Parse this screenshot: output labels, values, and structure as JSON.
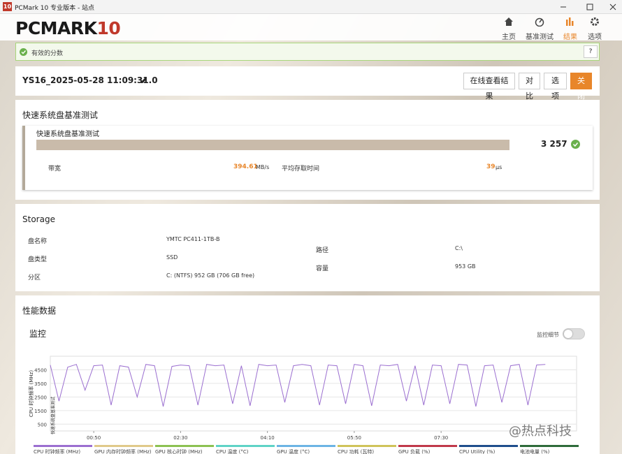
{
  "window": {
    "icon": "10",
    "title": "PCMark 10 专业版本 - 站点"
  },
  "header": {
    "logo": "PCMARK",
    "logo_num": "10",
    "nav": [
      "主页",
      "基准测试",
      "结果",
      "选项"
    ]
  },
  "notice": {
    "text": "有效的分数",
    "help": "?"
  },
  "result": {
    "name": "YS16_2025-05-28 11:09:31.0",
    "buttons": [
      "在线查看结果",
      "对比",
      "选项",
      "关闭"
    ]
  },
  "benchmark": {
    "heading": "快速系统盘基准测试",
    "card_title": "快速系统盘基准测试",
    "score": "3 257",
    "metrics": [
      {
        "label": "带宽",
        "value": "394.61",
        "unit": "MB/s"
      },
      {
        "label": "平均存取时间",
        "value": "39",
        "unit": "μs"
      }
    ]
  },
  "storage": {
    "heading": "Storage",
    "rows": [
      [
        "盘名称",
        "YMTC PC411-1TB-B"
      ],
      [
        "盘类型",
        "SSD"
      ],
      [
        "分区",
        "C: (NTFS) 952 GB (706 GB free)"
      ]
    ],
    "right_rows": [
      [
        "路径",
        "C:\\"
      ],
      [
        "容量",
        "953 GB"
      ]
    ]
  },
  "performance": {
    "heading": "性能数据",
    "sub": "监控",
    "toggle": "监控细节"
  },
  "watermark": "@热点科技",
  "chart_data": {
    "type": "line",
    "y_label": "CPU 时钟频率 (MHz)",
    "annotation": "快速系统盘基准测试",
    "x": [
      0,
      10,
      20,
      30,
      40,
      50,
      60,
      70,
      80,
      90,
      100,
      110,
      120,
      130,
      140,
      150,
      160,
      170,
      180,
      190,
      200,
      210,
      220,
      230,
      240,
      250,
      260,
      270,
      280,
      290,
      300,
      310,
      320,
      330,
      340,
      350,
      360,
      370,
      380,
      390,
      400,
      410,
      420,
      430,
      440,
      450,
      460,
      470,
      480,
      490,
      500,
      510,
      520,
      530,
      540,
      550,
      560,
      570
    ],
    "series": [
      {
        "name": "CPU 时钟频率 (MHz)",
        "color": "#9b6fd0",
        "values": [
          4850,
          2200,
          4700,
          4900,
          3000,
          4800,
          4850,
          1900,
          4800,
          4700,
          2500,
          4900,
          4800,
          1800,
          4750,
          4850,
          4800,
          1900,
          4900,
          4800,
          4850,
          2000,
          4800,
          1850,
          4900,
          4800,
          4850,
          2100,
          4800,
          4900,
          4800,
          1900,
          4850,
          4800,
          2000,
          4900,
          4800,
          1850,
          4850,
          4800,
          4900,
          2200,
          4800,
          1900,
          4850,
          4800,
          2000,
          4900,
          4850,
          1800,
          4800,
          4850,
          2100,
          4800,
          4900,
          1900,
          4850,
          4900
        ]
      }
    ],
    "legend_items": [
      {
        "name": "GPU 内存时钟频率 (MHz)",
        "color": "#e0c98a"
      },
      {
        "name": "GPU 核心时钟 (MHz)",
        "color": "#8cc152"
      },
      {
        "name": "CPU 温度 (°C)",
        "color": "#5fd3c6"
      },
      {
        "name": "GPU 温度 (°C)",
        "color": "#6cb4e4"
      },
      {
        "name": "CPU 功耗 (瓦特)",
        "color": "#cfc35a"
      },
      {
        "name": "GPU 负载 (%)",
        "color": "#c0394a"
      },
      {
        "name": "CPU Utility (%)",
        "color": "#1f4e8c"
      },
      {
        "name": "电池电量 (%)",
        "color": "#2e6b3a"
      }
    ],
    "xlim": [
      0,
      606
    ],
    "xticks": [
      {
        "value": 50,
        "label": "00:50"
      },
      {
        "value": 150,
        "label": "02:30"
      },
      {
        "value": 250,
        "label": "04:10"
      },
      {
        "value": 350,
        "label": "05:50"
      },
      {
        "value": 450,
        "label": "07:30"
      }
    ],
    "ylim": [
      0,
      5500
    ],
    "yticks": [
      500,
      1500,
      2500,
      3500,
      4500
    ],
    "grid": true
  }
}
